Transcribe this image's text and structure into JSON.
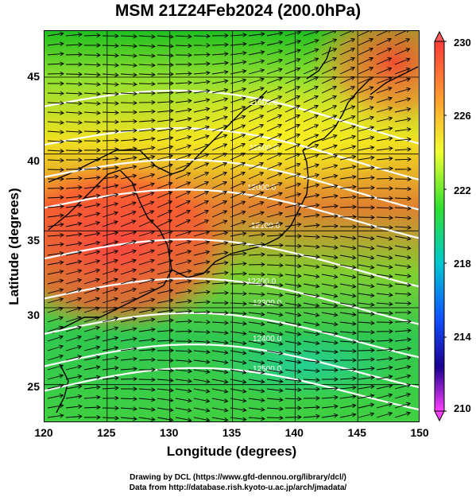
{
  "title": "MSM 21Z24Feb2024 (200.0hPa)",
  "xlabel": "Longitude (degrees)",
  "ylabel": "Latitude  (degrees)",
  "x_ticks": [
    "120",
    "125",
    "130",
    "135",
    "140",
    "145",
    "150"
  ],
  "y_ticks": [
    "45",
    "40",
    "35",
    "30",
    "25"
  ],
  "colorbar": {
    "ticks": [
      "230",
      "226",
      "222",
      "218",
      "214",
      "210"
    ],
    "colors": [
      "#ff3a3a",
      "#ffa030",
      "#f0ff30",
      "#30e030",
      "#00c8c8",
      "#1050ff",
      "#1a0090",
      "#ff40ff"
    ]
  },
  "credit_line1": "Drawing by DCL (https://www.gfd-dennou.org/library/dcl/)",
  "credit_line2": "Data from http://database.rish.kyoto-u.ac.jp/arch/jmadata/",
  "chart_data": {
    "type": "heatmap",
    "variable": "temperature",
    "lon_range": [
      120,
      150
    ],
    "lat_range": [
      22.5,
      48
    ],
    "color_range": [
      210,
      230
    ],
    "contour_labels": [
      "11600.0",
      "11800.0",
      "12000.0",
      "12100.0",
      "12200.0",
      "12300.0",
      "12400.0",
      "12500.0"
    ]
  }
}
